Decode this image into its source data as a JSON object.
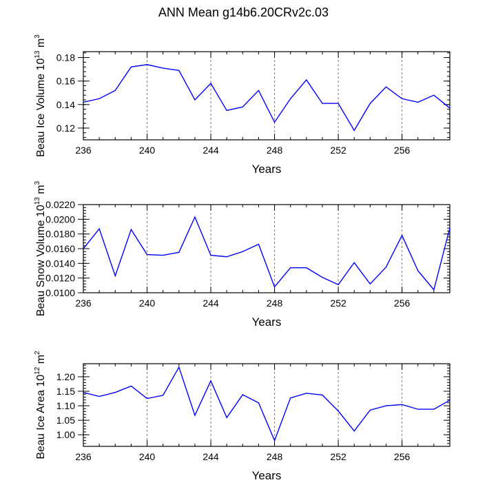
{
  "title": "ANN Mean g14b6.20CRv2c.03",
  "chart_data": [
    {
      "type": "line",
      "title": "",
      "xlabel": "Years",
      "ylabel": "Beau Ice Volume",
      "units": {
        "base": "10",
        "exp": "13",
        "unit": "m",
        "unit_exp": "3"
      },
      "xlim": [
        236,
        259
      ],
      "ylim": [
        0.11,
        0.185
      ],
      "xticks": [
        236,
        240,
        244,
        248,
        252,
        256
      ],
      "yticks": [
        0.12,
        0.14,
        0.16,
        0.18
      ],
      "yticklabels": [
        "0.12",
        "0.14",
        "0.16",
        "0.18"
      ],
      "xticklabels": [
        "236",
        "240",
        "244",
        "248",
        "252",
        "256"
      ],
      "x": [
        236,
        237,
        238,
        239,
        240,
        241,
        242,
        243,
        244,
        245,
        246,
        247,
        248,
        249,
        250,
        251,
        252,
        253,
        254,
        255,
        256,
        257,
        258,
        259
      ],
      "values": [
        0.142,
        0.145,
        0.152,
        0.172,
        0.174,
        0.171,
        0.169,
        0.144,
        0.158,
        0.135,
        0.138,
        0.152,
        0.125,
        0.145,
        0.161,
        0.141,
        0.141,
        0.118,
        0.141,
        0.155,
        0.145,
        0.142,
        0.148,
        0.137
      ],
      "color": "#0000ff",
      "grid": "vertical dashed at major x ticks"
    },
    {
      "type": "line",
      "title": "",
      "xlabel": "Years",
      "ylabel": "Beau Snow Volume",
      "units": {
        "base": "10",
        "exp": "13",
        "unit": "m",
        "unit_exp": "3"
      },
      "xlim": [
        236,
        259
      ],
      "ylim": [
        0.01,
        0.022
      ],
      "xticks": [
        236,
        240,
        244,
        248,
        252,
        256
      ],
      "yticks": [
        0.01,
        0.012,
        0.014,
        0.016,
        0.018,
        0.02,
        0.022
      ],
      "yticklabels": [
        "0.0100",
        "0.0120",
        "0.0140",
        "0.0160",
        "0.0180",
        "0.0200",
        "0.0220"
      ],
      "xticklabels": [
        "236",
        "240",
        "244",
        "248",
        "252",
        "256"
      ],
      "x": [
        236,
        237,
        238,
        239,
        240,
        241,
        242,
        243,
        244,
        245,
        246,
        247,
        248,
        249,
        250,
        251,
        252,
        253,
        254,
        255,
        256,
        257,
        258,
        259
      ],
      "values": [
        0.016,
        0.0187,
        0.0123,
        0.0186,
        0.0152,
        0.0151,
        0.0155,
        0.0203,
        0.0151,
        0.0149,
        0.0156,
        0.0166,
        0.0108,
        0.0134,
        0.0134,
        0.0121,
        0.0111,
        0.0141,
        0.0112,
        0.0135,
        0.0178,
        0.013,
        0.0104,
        0.0188
      ],
      "color": "#0000ff",
      "grid": "vertical dashed at major x ticks"
    },
    {
      "type": "line",
      "title": "",
      "xlabel": "Years",
      "ylabel": "Beau Ice Area",
      "units": {
        "base": "10",
        "exp": "12",
        "unit": "m",
        "unit_exp": "2"
      },
      "xlim": [
        236,
        259
      ],
      "ylim": [
        0.96,
        1.245
      ],
      "xticks": [
        236,
        240,
        244,
        248,
        252,
        256
      ],
      "yticks": [
        1.0,
        1.05,
        1.1,
        1.15,
        1.2
      ],
      "yticklabels": [
        "1.00",
        "1.05",
        "1.10",
        "1.15",
        "1.20"
      ],
      "xticklabels": [
        "236",
        "240",
        "244",
        "248",
        "252",
        "256"
      ],
      "x": [
        236,
        237,
        238,
        239,
        240,
        241,
        242,
        243,
        244,
        245,
        246,
        247,
        248,
        249,
        250,
        251,
        252,
        253,
        254,
        255,
        256,
        257,
        258,
        259
      ],
      "values": [
        1.146,
        1.132,
        1.146,
        1.168,
        1.125,
        1.136,
        1.233,
        1.067,
        1.186,
        1.059,
        1.138,
        1.11,
        0.98,
        1.127,
        1.143,
        1.137,
        1.082,
        1.013,
        1.085,
        1.1,
        1.104,
        1.088,
        1.088,
        1.119
      ],
      "color": "#0000ff",
      "grid": "vertical dashed at major x ticks"
    }
  ]
}
